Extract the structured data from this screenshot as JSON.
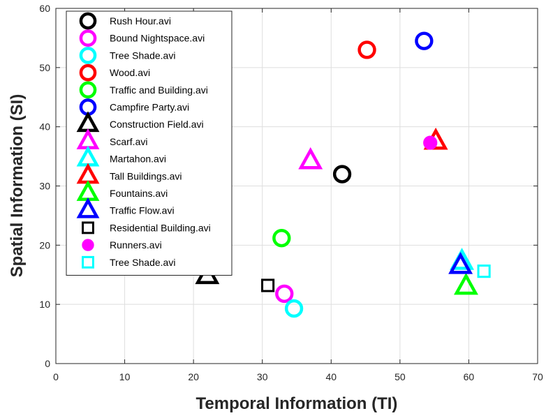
{
  "chart_data": {
    "type": "scatter",
    "xlabel": "Temporal Information (TI)",
    "ylabel": "Spatial Information (SI)",
    "xlim": [
      0,
      70
    ],
    "ylim": [
      0,
      60
    ],
    "xticks": [
      "0",
      "10",
      "20",
      "30",
      "40",
      "50",
      "60",
      "70"
    ],
    "yticks": [
      "0",
      "10",
      "20",
      "30",
      "40",
      "50",
      "60"
    ],
    "grid": true,
    "legend_position": "top-left",
    "series": [
      {
        "name": "Rush Hour.avi",
        "marker": "circle-open",
        "color": "#000000",
        "points": [
          [
            41.6,
            32.0
          ]
        ]
      },
      {
        "name": "Bound Nightspace.avi",
        "marker": "circle-open",
        "color": "#ff00ff",
        "points": [
          [
            33.2,
            11.8
          ]
        ]
      },
      {
        "name": "Tree Shade.avi",
        "marker": "circle-open",
        "color": "#00ffff",
        "points": [
          [
            34.6,
            9.3
          ]
        ]
      },
      {
        "name": "Wood.avi",
        "marker": "circle-open",
        "color": "#ff0000",
        "points": [
          [
            45.2,
            53.0
          ]
        ]
      },
      {
        "name": "Traffic and Building.avi",
        "marker": "circle-open",
        "color": "#00ff00",
        "points": [
          [
            32.8,
            21.2
          ]
        ]
      },
      {
        "name": "Campfire Party.avi",
        "marker": "circle-open",
        "color": "#0000ff",
        "points": [
          [
            53.5,
            54.5
          ]
        ]
      },
      {
        "name": "Construction Field.avi",
        "marker": "triangle-open",
        "color": "#000000",
        "points": [
          [
            22.0,
            14.8
          ]
        ]
      },
      {
        "name": "Scarf.avi",
        "marker": "triangle-open",
        "color": "#ff00ff",
        "points": [
          [
            37.0,
            34.2
          ]
        ]
      },
      {
        "name": "Martahon.avi",
        "marker": "triangle-open",
        "color": "#00ffff",
        "points": [
          [
            59.0,
            17.2
          ]
        ]
      },
      {
        "name": "Tall Buildings.avi",
        "marker": "triangle-open",
        "color": "#ff0000",
        "points": [
          [
            55.2,
            37.5
          ]
        ]
      },
      {
        "name": "Fountains.avi",
        "marker": "triangle-open",
        "color": "#00ff00",
        "points": [
          [
            59.6,
            13.0
          ]
        ]
      },
      {
        "name": "Traffic Flow.avi",
        "marker": "triangle-open",
        "color": "#0000ff",
        "points": [
          [
            58.8,
            16.5
          ]
        ]
      },
      {
        "name": "Residential Building.avi",
        "marker": "square-open",
        "color": "#000000",
        "points": [
          [
            30.8,
            13.2
          ]
        ]
      },
      {
        "name": "Runners.avi",
        "marker": "circle-filled",
        "color": "#ff00ff",
        "points": [
          [
            54.4,
            37.3
          ]
        ]
      },
      {
        "name": "Tree Shade.avi",
        "marker": "square-open",
        "color": "#00ffff",
        "points": [
          [
            62.2,
            15.6
          ]
        ]
      }
    ]
  }
}
